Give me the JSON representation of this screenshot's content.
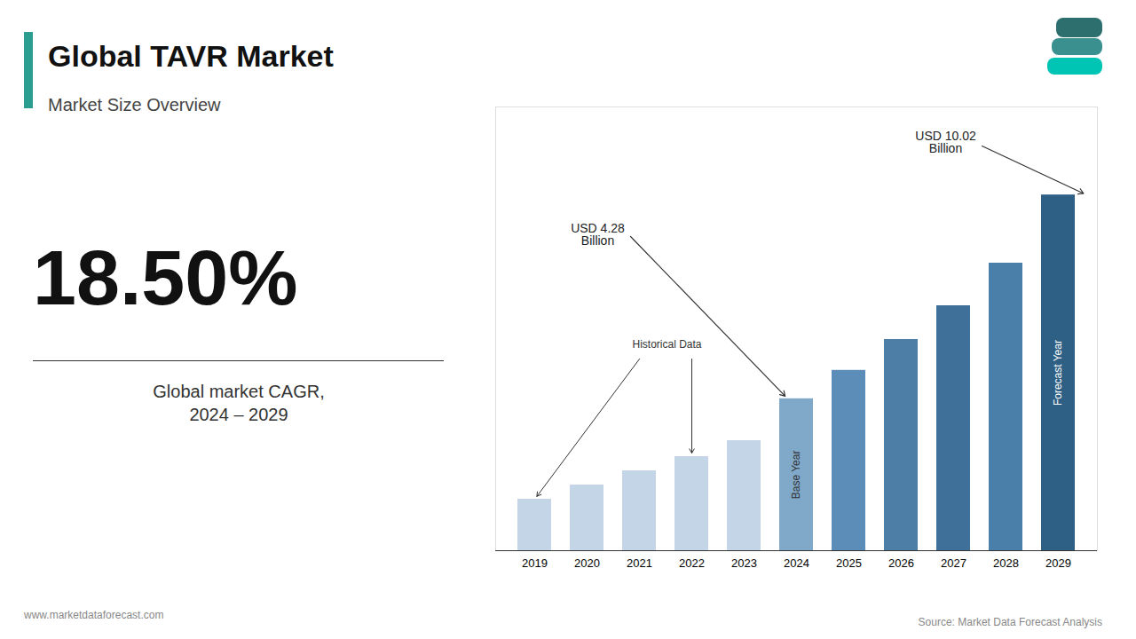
{
  "chart_data": {
    "type": "bar",
    "title": "Global TAVR Market",
    "subtitle": "Market Size Overview",
    "categories": [
      "2019",
      "2020",
      "2021",
      "2022",
      "2023",
      "2024",
      "2025",
      "2026",
      "2027",
      "2028",
      "2029"
    ],
    "values": [
      1.45,
      1.85,
      2.25,
      2.65,
      3.1,
      4.28,
      5.08,
      5.95,
      6.9,
      8.1,
      10.02
    ],
    "colors": [
      "#c5d5e8",
      "#c5d5e8",
      "#c5d5e8",
      "#c5d5e8",
      "#c5d5e8",
      "#7fa8c9",
      "#5b8db8",
      "#4d7fa6",
      "#3f7099",
      "#4a7faa",
      "#2e5f85"
    ],
    "ylim": [
      0,
      12.5
    ],
    "tick_labels": "x",
    "grid": false,
    "annotations": [
      "18.50%",
      "Global market CAGR,\n2024 – 2029",
      "USD 4.28\nBillion",
      "Historical Data",
      "USD 10.02\nBillion",
      "Base Year",
      "Forecast Year",
      "www.marketdataforecast.com",
      "Source: Market Data Forecast Analysis"
    ]
  }
}
